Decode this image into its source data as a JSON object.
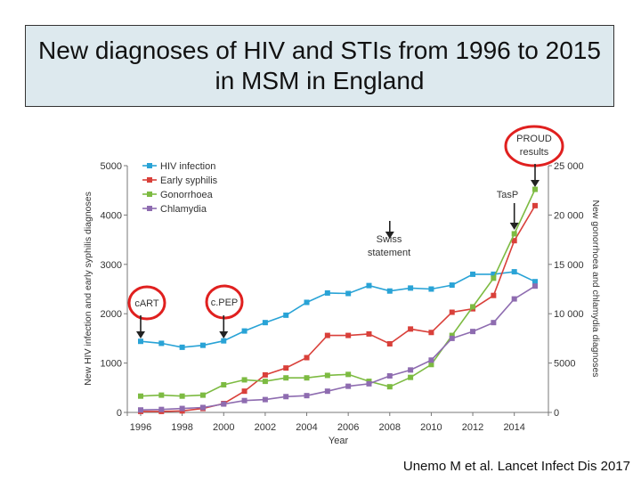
{
  "slide": {
    "title": "New diagnoses of HIV and STIs from 1996 to 2015 in MSM in England",
    "caption": "Unemo M et al. Lancet Infect Dis 2017"
  },
  "chart_data": {
    "type": "line",
    "xlabel": "Year",
    "ylabel_left": "New HIV infection and early syphilis diagnoses",
    "ylabel_right": "New gonorrhoea and chlamydia diagnoses",
    "ylim_left": [
      0,
      5000
    ],
    "ylim_right": [
      0,
      25000
    ],
    "xlim": [
      1996,
      2015
    ],
    "x_ticks": [
      1996,
      1998,
      2000,
      2002,
      2004,
      2006,
      2008,
      2010,
      2012,
      2014
    ],
    "x_tick_labels": [
      "1996",
      "1998",
      "2000",
      "2002",
      "2004",
      "2006",
      "2008",
      "2010",
      "2012",
      "2014"
    ],
    "y_ticks_left": [
      0,
      1000,
      2000,
      3000,
      4000,
      5000
    ],
    "y_tick_labels_left": [
      "0",
      "1000",
      "2000",
      "3000",
      "4000",
      "5000"
    ],
    "y_ticks_right": [
      0,
      5000,
      10000,
      15000,
      20000,
      25000
    ],
    "y_tick_labels_right": [
      "0",
      "5000",
      "10 000",
      "15 000",
      "20 000",
      "25 000"
    ],
    "years": [
      1996,
      1997,
      1998,
      1999,
      2000,
      2001,
      2002,
      2003,
      2004,
      2005,
      2006,
      2007,
      2008,
      2009,
      2010,
      2011,
      2012,
      2013,
      2014,
      2015
    ],
    "series": [
      {
        "name": "HIV infection",
        "axis": "left",
        "color": "#29a3d6",
        "values": [
          1440,
          1400,
          1320,
          1360,
          1450,
          1650,
          1820,
          1970,
          2230,
          2420,
          2410,
          2570,
          2460,
          2520,
          2500,
          2580,
          2800,
          2800,
          2850,
          2650
        ]
      },
      {
        "name": "Early syphilis",
        "axis": "left",
        "color": "#d9403a",
        "values": [
          20,
          20,
          30,
          80,
          180,
          430,
          760,
          900,
          1110,
          1560,
          1560,
          1590,
          1390,
          1690,
          1620,
          2030,
          2100,
          2370,
          3480,
          4190
        ]
      },
      {
        "name": "Gonorrhoea",
        "axis": "right",
        "color": "#7dbb42",
        "values": [
          1650,
          1750,
          1650,
          1750,
          2800,
          3300,
          3150,
          3500,
          3500,
          3750,
          3850,
          3150,
          2600,
          3550,
          4850,
          7800,
          10700,
          13600,
          18100,
          22600
        ]
      },
      {
        "name": "Chlamydia",
        "axis": "right",
        "color": "#8e6cb0",
        "values": [
          250,
          300,
          400,
          500,
          850,
          1200,
          1300,
          1600,
          1700,
          2150,
          2650,
          2900,
          3700,
          4300,
          5300,
          7500,
          8200,
          9100,
          11500,
          12800
        ]
      }
    ],
    "annotations": [
      {
        "label": "cART",
        "year": 1996,
        "circled": true
      },
      {
        "label": "c.PEP",
        "year": 2000,
        "circled": true
      },
      {
        "label": "Swiss statement",
        "year": 2008,
        "circled": false
      },
      {
        "label": "TasP",
        "year": 2014,
        "circled": false
      },
      {
        "label": "PROUD results",
        "year": 2015,
        "circled": true
      }
    ]
  },
  "colors": {
    "title_background": "#dde9ee",
    "highlight_circle": "#e0201f"
  }
}
